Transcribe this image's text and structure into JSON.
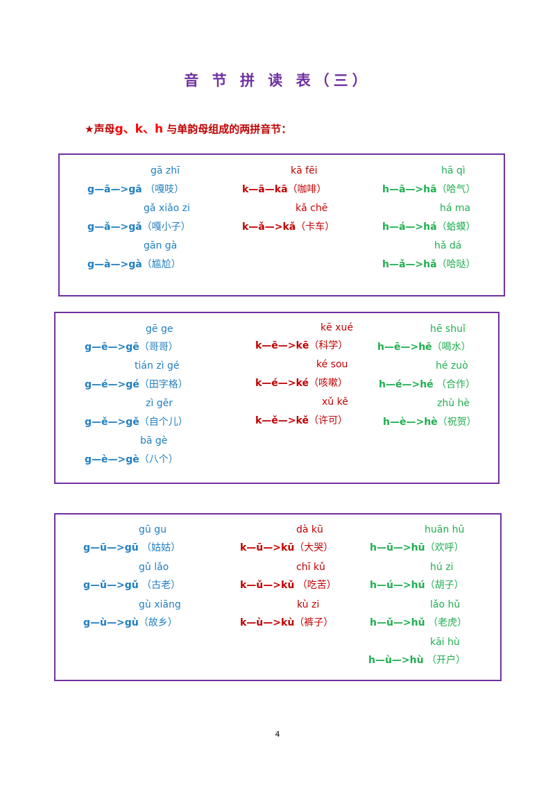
{
  "title": "音 节 拼 读 表（三）",
  "subtitle": {
    "star": "★",
    "prefix": "声母",
    "highlight": "g、k、h",
    "suffix": " 与单韵母组成的两拼音节："
  },
  "sections": [
    {
      "g": [
        {
          "pinyin": "gā zhī",
          "formula": "g—ā—>gā",
          "words": " （嘎吱）"
        },
        {
          "pinyin": "gǎ xiǎo zi",
          "formula": "g—ǎ—>gǎ",
          "words": "（嘎小子）"
        },
        {
          "pinyin": "gān gà",
          "formula": "g—à—>gà",
          "words": "（尴尬）"
        }
      ],
      "k": [
        {
          "pinyin": "kā fēi",
          "formula": "k—ā—kā",
          "words": "（咖啡）"
        },
        {
          "pinyin": "kǎ chē",
          "formula": "k—ǎ—>kǎ",
          "words": "（卡车）"
        }
      ],
      "h": [
        {
          "pinyin": "hā qì",
          "formula": "h—ā—>hā",
          "words": "（哈气）"
        },
        {
          "pinyin": "há ma",
          "formula": "h—á—>há",
          "words": "（蛤蟆）"
        },
        {
          "pinyin": "hǎ dá",
          "formula": "h—ǎ—>hǎ",
          "words": "（哈哒）"
        }
      ]
    },
    {
      "g": [
        {
          "pinyin": "gē ge",
          "formula": "g—ē—>gē",
          "words": "（哥哥）"
        },
        {
          "pinyin": "tián zì gé",
          "formula": "g—é—>gé",
          "words": "（田字格）"
        },
        {
          "pinyin": "zì gěr",
          "formula": "g—ě—>gě",
          "words": "（自个儿）"
        },
        {
          "pinyin": "bā gè",
          "formula": "g—è—>gè",
          "words": "（八个）"
        }
      ],
      "k": [
        {
          "pinyin": "kē xué",
          "formula": "k—ē—>kē",
          "words": "（科学）"
        },
        {
          "pinyin": "ké sou",
          "formula": "k—é—>ké",
          "words": "（咳嗽）"
        },
        {
          "pinyin": "xǔ kě",
          "formula": "k—ě—>kě",
          "words": "（许可）"
        }
      ],
      "h": [
        {
          "pinyin": "hē shuǐ",
          "formula": "h—ē—>hē",
          "words": "（喝水）"
        },
        {
          "pinyin": "hé zuò",
          "formula": "h—é—>hé",
          "words": " （合作）"
        },
        {
          "pinyin": "zhù hè",
          "formula": "h—è—>hè",
          "words": "（祝贺）"
        }
      ]
    },
    {
      "g": [
        {
          "pinyin": "gū gu",
          "formula": "g—ū—>gū",
          "words": " （姑姑）"
        },
        {
          "pinyin": "gǔ lǎo",
          "formula": "g—ǔ—>gǔ",
          "words": " （古老）"
        },
        {
          "pinyin": "gù xiāng",
          "formula": "g—ù—>gù",
          "words": "（故乡）"
        }
      ],
      "k": [
        {
          "pinyin": "dà kū",
          "formula": "k—ū—>kū",
          "words": "（大哭）"
        },
        {
          "pinyin": "chī kǔ",
          "formula": "k—ǔ—>kǔ",
          "words": " （吃苦）"
        },
        {
          "pinyin": "kù zi",
          "formula": "k—ù—>kù",
          "words": "（裤子）"
        }
      ],
      "h": [
        {
          "pinyin": "huān hū",
          "formula": "h—ū—>hū",
          "words": "（欢呼）"
        },
        {
          "pinyin": "hú zi",
          "formula": "h—ú—>hú",
          "words": "（胡子）"
        },
        {
          "pinyin": "lǎo hǔ",
          "formula": "h—ǔ—>hǔ",
          "words": " （老虎）"
        },
        {
          "pinyin": "kāi hù",
          "formula": "h—ù—>hù",
          "words": " （开户）"
        }
      ]
    }
  ],
  "page_number": "4"
}
